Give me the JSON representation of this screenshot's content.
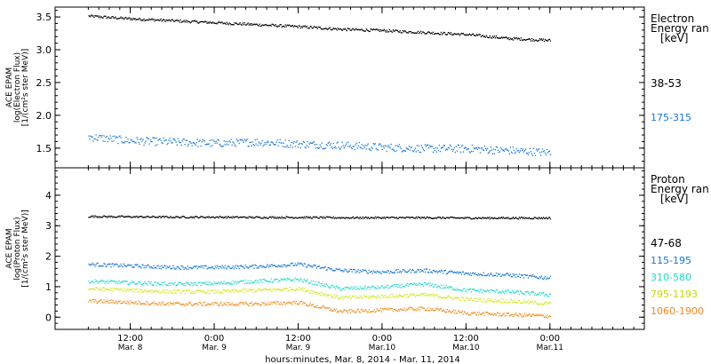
{
  "chart_data": [
    {
      "type": "scatter",
      "panel": "electron",
      "ylabel_lines": [
        "ACE EPAM",
        "log(Electron Flux)",
        "[1/(cm²s ster MeV)]"
      ],
      "legend_title_lines": [
        "Electron",
        "Energy ran",
        "[keV]"
      ],
      "ylim": [
        1.2,
        3.65
      ],
      "yticks": [
        1.5,
        2.0,
        2.5,
        3.0,
        3.5
      ],
      "yticklabels": [
        "1.5",
        "2.0",
        "2.5",
        "3.0",
        "3.5"
      ],
      "series": [
        {
          "name": "38-53",
          "color": "#000000",
          "x": [
            0,
            12,
            24,
            36,
            48,
            60,
            72,
            84,
            96,
            108,
            120,
            132
          ],
          "y": [
            3.52,
            3.48,
            3.45,
            3.42,
            3.39,
            3.36,
            3.32,
            3.3,
            3.27,
            3.24,
            3.18,
            3.15
          ]
        },
        {
          "name": "175-315",
          "color": "#1a78d0",
          "x": [
            0,
            12,
            24,
            36,
            48,
            60,
            72,
            84,
            96,
            108,
            120,
            132
          ],
          "y": [
            1.68,
            1.62,
            1.6,
            1.58,
            1.6,
            1.57,
            1.55,
            1.52,
            1.5,
            1.5,
            1.47,
            1.44
          ]
        }
      ]
    },
    {
      "type": "scatter",
      "panel": "proton",
      "ylabel_lines": [
        "ACE EPAM",
        "log(Proton Flux)",
        "[1/(cm²s ster MeV)]"
      ],
      "legend_title_lines": [
        "Proton",
        "Energy ran",
        "[keV]"
      ],
      "ylim": [
        -0.4,
        4.9
      ],
      "yticks": [
        0,
        1,
        2,
        3,
        4
      ],
      "yticklabels": [
        "0",
        "1",
        "2",
        "3",
        "4"
      ],
      "series": [
        {
          "name": "47-68",
          "color": "#000000",
          "x": [
            0,
            12,
            24,
            36,
            48,
            60,
            72,
            84,
            96,
            108,
            120,
            132
          ],
          "y": [
            3.32,
            3.31,
            3.3,
            3.3,
            3.29,
            3.29,
            3.28,
            3.28,
            3.28,
            3.27,
            3.27,
            3.27
          ]
        },
        {
          "name": "115-195",
          "color": "#1a78d0",
          "x": [
            0,
            12,
            24,
            36,
            48,
            60,
            72,
            84,
            96,
            108,
            120,
            132
          ],
          "y": [
            1.75,
            1.7,
            1.65,
            1.65,
            1.68,
            1.75,
            1.55,
            1.5,
            1.55,
            1.45,
            1.4,
            1.3
          ]
        },
        {
          "name": "310-580",
          "color": "#22d8c8",
          "x": [
            0,
            12,
            24,
            36,
            48,
            60,
            72,
            84,
            96,
            108,
            120,
            132
          ],
          "y": [
            1.2,
            1.15,
            1.1,
            1.12,
            1.2,
            1.25,
            0.95,
            1.0,
            1.1,
            0.9,
            0.85,
            0.75
          ]
        },
        {
          "name": "795-1193",
          "color": "#d0e81a",
          "x": [
            0,
            12,
            24,
            36,
            48,
            60,
            72,
            84,
            96,
            108,
            120,
            132
          ],
          "y": [
            0.95,
            0.9,
            0.85,
            0.85,
            0.9,
            0.95,
            0.65,
            0.7,
            0.75,
            0.6,
            0.55,
            0.45
          ]
        },
        {
          "name": "1060-1900",
          "color": "#f08a1a",
          "x": [
            0,
            12,
            24,
            36,
            48,
            60,
            72,
            84,
            96,
            108,
            120,
            132
          ],
          "y": [
            0.55,
            0.5,
            0.45,
            0.45,
            0.45,
            0.5,
            0.2,
            0.25,
            0.3,
            0.15,
            0.1,
            0.05
          ]
        }
      ]
    }
  ],
  "x_axis": {
    "xlim": [
      -9.5,
      159
    ],
    "ticks": [
      {
        "x": 12,
        "line1": "12:00",
        "line2": "Mar. 8"
      },
      {
        "x": 36,
        "line1": "0:00",
        "line2": "Mar. 9"
      },
      {
        "x": 60,
        "line1": "12:00",
        "line2": "Mar. 9"
      },
      {
        "x": 84,
        "line1": "0:00",
        "line2": "Mar.10"
      },
      {
        "x": 108,
        "line1": "12:00",
        "line2": "Mar.10"
      },
      {
        "x": 132,
        "line1": "0:00",
        "line2": "Mar.11"
      }
    ],
    "xlabel": "hours:minutes, Mar. 8, 2014 - Mar. 11, 2014"
  }
}
